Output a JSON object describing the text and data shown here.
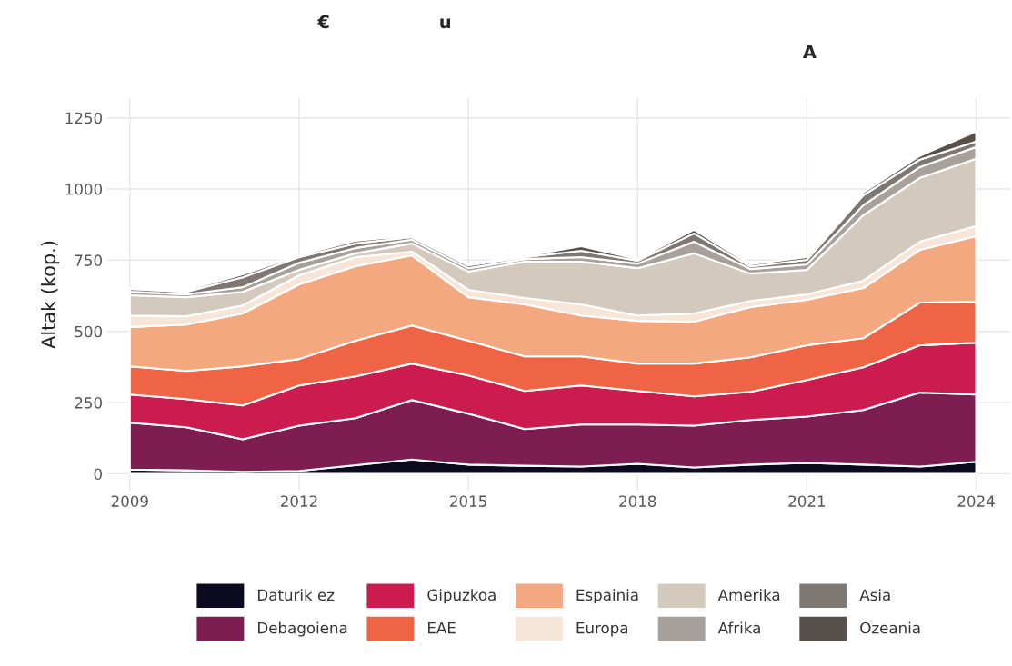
{
  "chart_data": {
    "type": "area",
    "stacked": true,
    "ylabel": "Altak (kop.)",
    "annotations": [
      "€",
      "u",
      "A"
    ],
    "x": [
      2009,
      2010,
      2011,
      2012,
      2013,
      2014,
      2015,
      2016,
      2017,
      2018,
      2019,
      2020,
      2021,
      2022,
      2023,
      2024
    ],
    "xlim": [
      2008.6,
      2024.6
    ],
    "xticks": [
      2009,
      2012,
      2015,
      2018,
      2021,
      2024
    ],
    "ylim": [
      -60,
      1320
    ],
    "yticks": [
      0,
      250,
      500,
      750,
      1000,
      1250
    ],
    "grid": true,
    "legend": "bottom",
    "series": [
      {
        "name": "Daturik ez",
        "color": "#0b0a1f",
        "values": [
          15,
          12,
          7,
          10,
          30,
          50,
          32,
          28,
          25,
          35,
          22,
          32,
          38,
          32,
          25,
          42
        ]
      },
      {
        "name": "Debagoiena",
        "color": "#7e1d52",
        "values": [
          164,
          151,
          114,
          159,
          165,
          209,
          179,
          129,
          148,
          138,
          147,
          157,
          163,
          192,
          260,
          236
        ]
      },
      {
        "name": "Gipuzkoa",
        "color": "#cb1b4f",
        "values": [
          99,
          99,
          119,
          141,
          147,
          128,
          134,
          134,
          137,
          118,
          103,
          99,
          128,
          150,
          166,
          182
        ]
      },
      {
        "name": "EAE",
        "color": "#ee6445",
        "values": [
          99,
          99,
          137,
          93,
          125,
          134,
          122,
          121,
          102,
          96,
          115,
          121,
          122,
          102,
          150,
          144
        ]
      },
      {
        "name": "Espainia",
        "color": "#f4a880",
        "values": [
          138,
          163,
          186,
          262,
          262,
          246,
          153,
          183,
          144,
          150,
          147,
          176,
          160,
          176,
          185,
          230
        ]
      },
      {
        "name": "Europa",
        "color": "#f7e6d8",
        "values": [
          41,
          29,
          28,
          32,
          32,
          13,
          26,
          22,
          39,
          19,
          29,
          22,
          19,
          26,
          29,
          36
        ]
      },
      {
        "name": "Amerika",
        "color": "#d3c9bd",
        "values": [
          71,
          67,
          48,
          19,
          13,
          29,
          64,
          128,
          150,
          166,
          211,
          96,
          86,
          230,
          224,
          236
        ]
      },
      {
        "name": "Afrika",
        "color": "#a8a09a",
        "values": [
          12,
          10,
          16,
          25,
          19,
          13,
          12,
          9,
          16,
          16,
          41,
          16,
          19,
          35,
          38,
          42
        ]
      },
      {
        "name": "Asia",
        "color": "#7f7872",
        "values": [
          10,
          9,
          35,
          20,
          16,
          9,
          10,
          7,
          22,
          10,
          29,
          9,
          16,
          35,
          26,
          19
        ]
      },
      {
        "name": "Ozeania",
        "color": "#564f4a",
        "values": [
          3,
          6,
          10,
          6,
          9,
          6,
          3,
          3,
          16,
          6,
          13,
          7,
          10,
          10,
          13,
          35
        ]
      }
    ]
  }
}
